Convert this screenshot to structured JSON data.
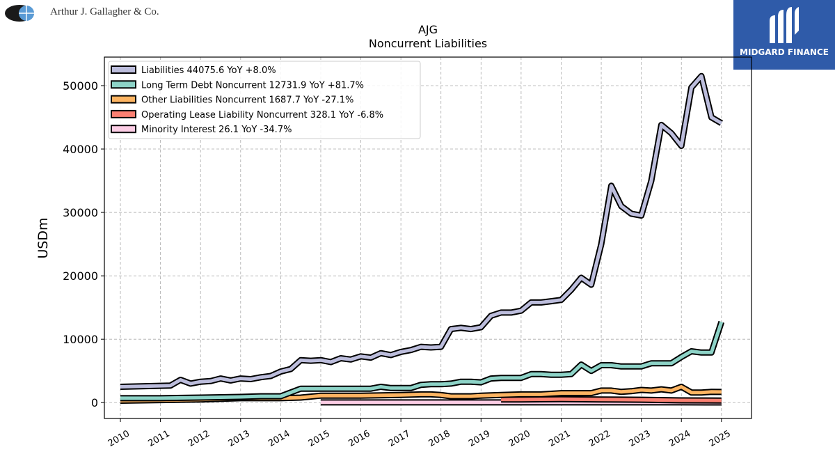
{
  "header": {
    "company_name": "Arthur J. Gallagher & Co.",
    "brand_name": "MIDGARD FINANCE"
  },
  "chart_data": {
    "type": "line",
    "title": "AJG",
    "subtitle": "Noncurrent  Liabilities",
    "xlabel": "",
    "ylabel": "USDm",
    "xlim": [
      2009.6,
      2025.75
    ],
    "ylim": [
      -2500,
      54500
    ],
    "yticks": [
      0,
      10000,
      20000,
      30000,
      40000,
      50000
    ],
    "xticks": [
      2010,
      2011,
      2012,
      2013,
      2014,
      2015,
      2016,
      2017,
      2018,
      2019,
      2020,
      2021,
      2022,
      2023,
      2024,
      2025
    ],
    "grid": true,
    "legend_position": "top-left",
    "series": [
      {
        "name": "Liabilities",
        "legend": "Liabilities  44075.6 YoY +8.0%",
        "color": "#bcbddc",
        "x": [
          2010.0,
          2011.25,
          2011.5,
          2011.75,
          2012.0,
          2012.25,
          2012.5,
          2012.75,
          2013.0,
          2013.25,
          2013.5,
          2013.75,
          2014.0,
          2014.25,
          2014.5,
          2014.75,
          2015.0,
          2015.25,
          2015.5,
          2015.75,
          2016.0,
          2016.25,
          2016.5,
          2016.75,
          2017.0,
          2017.25,
          2017.5,
          2017.75,
          2018.0,
          2018.25,
          2018.5,
          2018.75,
          2019.0,
          2019.25,
          2019.5,
          2019.75,
          2020.0,
          2020.25,
          2020.5,
          2020.75,
          2021.0,
          2021.25,
          2021.5,
          2021.75,
          2022.0,
          2022.25,
          2022.5,
          2022.75,
          2023.0,
          2023.25,
          2023.5,
          2023.75,
          2024.0,
          2024.25,
          2024.5,
          2024.75,
          2025.0
        ],
        "y": [
          2500,
          2700,
          3600,
          3000,
          3300,
          3400,
          3800,
          3500,
          3800,
          3700,
          4000,
          4200,
          4900,
          5300,
          6700,
          6600,
          6700,
          6400,
          7000,
          6800,
          7300,
          7100,
          7800,
          7500,
          8000,
          8300,
          8800,
          8700,
          8800,
          11600,
          11800,
          11600,
          11900,
          13700,
          14200,
          14200,
          14500,
          15800,
          15800,
          16000,
          16200,
          17800,
          19700,
          18600,
          25000,
          34200,
          31000,
          29800,
          29500,
          35000,
          43800,
          42500,
          40500,
          49700,
          51500,
          45000,
          44075.6
        ]
      },
      {
        "name": "Long Term Debt Noncurrent",
        "legend": "Long Term Debt Noncurrent  12731.9 YoY +81.7%",
        "color": "#8dd3c7",
        "x": [
          2010.0,
          2011.0,
          2012.0,
          2013.0,
          2013.5,
          2014.0,
          2014.5,
          2015.0,
          2015.5,
          2016.0,
          2016.25,
          2016.5,
          2016.75,
          2017.0,
          2017.25,
          2017.5,
          2017.75,
          2018.0,
          2018.25,
          2018.5,
          2018.75,
          2019.0,
          2019.25,
          2019.5,
          2019.75,
          2020.0,
          2020.25,
          2020.5,
          2020.75,
          2021.0,
          2021.25,
          2021.5,
          2021.75,
          2022.0,
          2022.25,
          2022.5,
          2022.75,
          2023.0,
          2023.25,
          2023.5,
          2023.75,
          2024.0,
          2024.25,
          2024.5,
          2024.75,
          2025.0
        ],
        "y": [
          700,
          700,
          800,
          900,
          1000,
          1000,
          2200,
          2200,
          2200,
          2200,
          2200,
          2500,
          2300,
          2300,
          2300,
          2800,
          2900,
          2900,
          3000,
          3300,
          3300,
          3200,
          3800,
          3900,
          3900,
          3900,
          4500,
          4500,
          4400,
          4400,
          4500,
          6000,
          5000,
          5900,
          5900,
          5700,
          5700,
          5700,
          6200,
          6200,
          6200,
          7200,
          8100,
          7900,
          7900,
          12731.9
        ]
      },
      {
        "name": "Other Liabilities Noncurrent",
        "legend": "Other Liabilities Noncurrent  1687.7 YoY -27.1%",
        "color": "#fdb462",
        "x": [
          2010.0,
          2011.0,
          2012.0,
          2013.0,
          2014.0,
          2014.5,
          2015.0,
          2016.0,
          2017.0,
          2017.5,
          2017.75,
          2018.0,
          2018.25,
          2018.75,
          2019.0,
          2019.5,
          2020.0,
          2020.5,
          2021.0,
          2021.5,
          2021.75,
          2022.0,
          2022.25,
          2022.5,
          2022.75,
          2023.0,
          2023.25,
          2023.5,
          2023.75,
          2024.0,
          2024.25,
          2024.5,
          2024.75,
          2025.0
        ],
        "y": [
          300,
          400,
          500,
          700,
          700,
          800,
          1100,
          1100,
          1200,
          1300,
          1300,
          1200,
          1000,
          1000,
          1100,
          1200,
          1300,
          1300,
          1500,
          1500,
          1500,
          1900,
          1900,
          1700,
          1800,
          2000,
          1900,
          2100,
          1900,
          2500,
          1600,
          1600,
          1700,
          1687.7
        ]
      },
      {
        "name": "Operating Lease Liability Noncurrent",
        "legend": "Operating Lease Liability Noncurrent  328.1 YoY -6.8%",
        "color": "#fb8072",
        "x": [
          2019.5,
          2020.0,
          2021.0,
          2022.0,
          2023.0,
          2024.0,
          2025.0
        ],
        "y": [
          500,
          500,
          550,
          500,
          450,
          350,
          328.1
        ]
      },
      {
        "name": "Minority Interest",
        "legend": "Minority Interest  26.1 YoY -34.7%",
        "color": "#fccde5",
        "x": [
          2015.0,
          2016.0,
          2017.0,
          2018.0,
          2019.0,
          2020.0,
          2021.0,
          2022.0,
          2023.0,
          2024.0,
          2025.0
        ],
        "y": [
          40,
          40,
          40,
          40,
          40,
          40,
          40,
          40,
          40,
          40,
          26.1
        ]
      }
    ]
  }
}
